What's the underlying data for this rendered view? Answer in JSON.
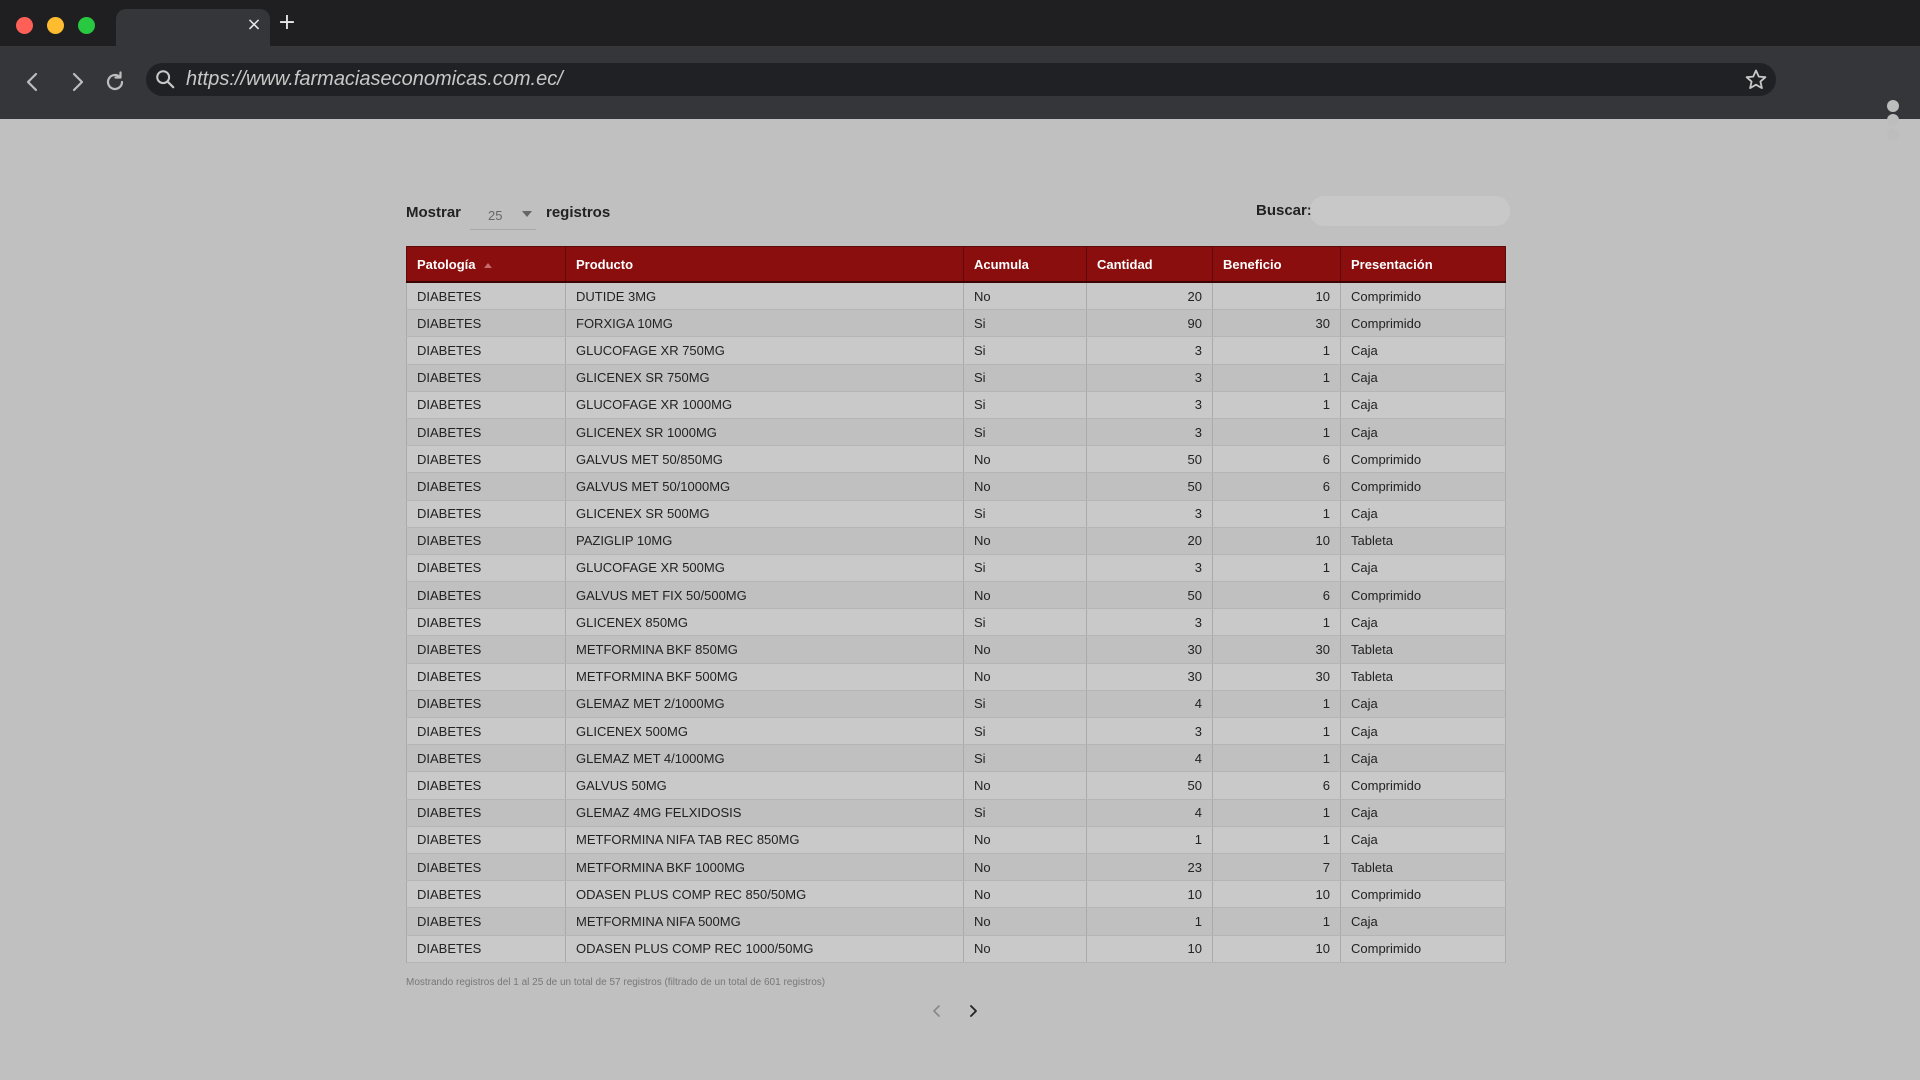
{
  "browser": {
    "url": "https://www.farmaciaseconomicas.com.ec/",
    "tab_close": "×",
    "new_tab": "+"
  },
  "controls": {
    "show_label": "Mostrar",
    "page_length": "25",
    "records_label": "registros",
    "search_label": "Buscar:",
    "search_value": ""
  },
  "table": {
    "headers": [
      "Patología",
      "Producto",
      "Acumula",
      "Cantidad",
      "Beneficio",
      "Presentación"
    ],
    "rows": [
      [
        "DIABETES",
        "DUTIDE 3MG",
        "No",
        "20",
        "10",
        "Comprimido"
      ],
      [
        "DIABETES",
        "FORXIGA 10MG",
        "Si",
        "90",
        "30",
        "Comprimido"
      ],
      [
        "DIABETES",
        "GLUCOFAGE XR 750MG",
        "Si",
        "3",
        "1",
        "Caja"
      ],
      [
        "DIABETES",
        "GLICENEX SR 750MG",
        "Si",
        "3",
        "1",
        "Caja"
      ],
      [
        "DIABETES",
        "GLUCOFAGE XR 1000MG",
        "Si",
        "3",
        "1",
        "Caja"
      ],
      [
        "DIABETES",
        "GLICENEX SR 1000MG",
        "Si",
        "3",
        "1",
        "Caja"
      ],
      [
        "DIABETES",
        "GALVUS MET 50/850MG",
        "No",
        "50",
        "6",
        "Comprimido"
      ],
      [
        "DIABETES",
        "GALVUS MET 50/1000MG",
        "No",
        "50",
        "6",
        "Comprimido"
      ],
      [
        "DIABETES",
        "GLICENEX SR 500MG",
        "Si",
        "3",
        "1",
        "Caja"
      ],
      [
        "DIABETES",
        "PAZIGLIP 10MG",
        "No",
        "20",
        "10",
        "Tableta"
      ],
      [
        "DIABETES",
        "GLUCOFAGE XR 500MG",
        "Si",
        "3",
        "1",
        "Caja"
      ],
      [
        "DIABETES",
        "GALVUS MET FIX 50/500MG",
        "No",
        "50",
        "6",
        "Comprimido"
      ],
      [
        "DIABETES",
        "GLICENEX 850MG",
        "Si",
        "3",
        "1",
        "Caja"
      ],
      [
        "DIABETES",
        "METFORMINA BKF 850MG",
        "No",
        "30",
        "30",
        "Tableta"
      ],
      [
        "DIABETES",
        "METFORMINA BKF 500MG",
        "No",
        "30",
        "30",
        "Tableta"
      ],
      [
        "DIABETES",
        "GLEMAZ MET 2/1000MG",
        "Si",
        "4",
        "1",
        "Caja"
      ],
      [
        "DIABETES",
        "GLICENEX 500MG",
        "Si",
        "3",
        "1",
        "Caja"
      ],
      [
        "DIABETES",
        "GLEMAZ MET 4/1000MG",
        "Si",
        "4",
        "1",
        "Caja"
      ],
      [
        "DIABETES",
        "GALVUS 50MG",
        "No",
        "50",
        "6",
        "Comprimido"
      ],
      [
        "DIABETES",
        "GLEMAZ 4MG FELXIDOSIS",
        "Si",
        "4",
        "1",
        "Caja"
      ],
      [
        "DIABETES",
        "METFORMINA NIFA TAB REC 850MG",
        "No",
        "1",
        "1",
        "Caja"
      ],
      [
        "DIABETES",
        "METFORMINA BKF 1000MG",
        "No",
        "23",
        "7",
        "Tableta"
      ],
      [
        "DIABETES",
        "ODASEN PLUS COMP REC 850/50MG",
        "No",
        "10",
        "10",
        "Comprimido"
      ],
      [
        "DIABETES",
        "METFORMINA NIFA 500MG",
        "No",
        "1",
        "1",
        "Caja"
      ],
      [
        "DIABETES",
        "ODASEN PLUS COMP REC 1000/50MG",
        "No",
        "10",
        "10",
        "Comprimido"
      ]
    ]
  },
  "footer": {
    "info": "Mostrando registros del 1 al 25 de un total de 57 registros (filtrado de un total de 601 registros)"
  },
  "colors": {
    "header_bg": "#8b0e0e",
    "page_bg": "#c0c0c0",
    "chrome_dark": "#1f1f21",
    "chrome_toolbar": "#35363a"
  }
}
